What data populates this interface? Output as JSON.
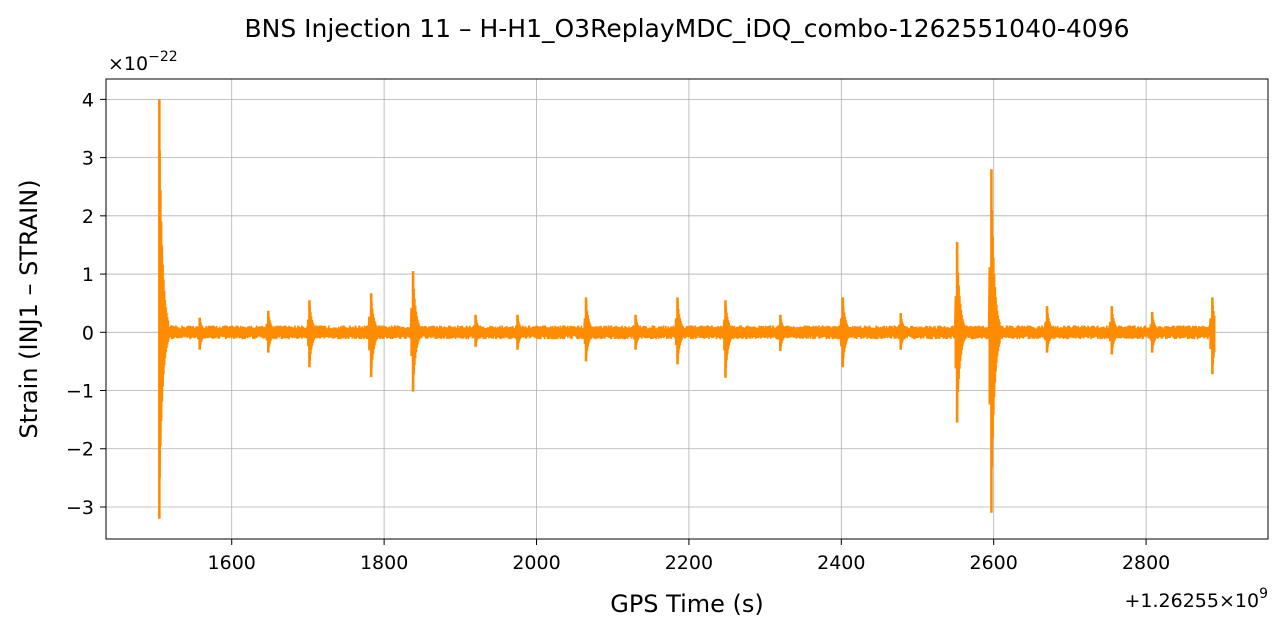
{
  "chart_data": {
    "type": "line",
    "title": "BNS Injection 11 – H-H1_O3ReplayMDC_iDQ_combo-1262551040-4096",
    "xlabel": "GPS Time (s)",
    "ylabel": "Strain (INJ1 – STRAIN)",
    "x_offset_text": "+1.26255×10",
    "x_offset_exp": "9",
    "y_scale_text": "×10",
    "y_scale_exp": "−22",
    "xlim": [
      1435,
      2960
    ],
    "ylim": [
      -3.55,
      4.35
    ],
    "x_ticks": [
      1600,
      1800,
      2000,
      2200,
      2400,
      2600,
      2800
    ],
    "x_tick_labels": [
      "1600",
      "1800",
      "2000",
      "2200",
      "2400",
      "2600",
      "2800"
    ],
    "y_ticks": [
      -3,
      -2,
      -1,
      0,
      1,
      2,
      3,
      4
    ],
    "y_tick_labels": [
      "−3",
      "−2",
      "−1",
      "0",
      "1",
      "2",
      "3",
      "4"
    ],
    "grid": true,
    "series": [
      {
        "color": "#ff8c00",
        "x_start": 1505,
        "x_end": 2890,
        "base_band": 0.1,
        "spikes": [
          {
            "x": 1505,
            "top": 4.0,
            "bottom": -3.2
          },
          {
            "x": 1558,
            "top": 0.25,
            "bottom": -0.3
          },
          {
            "x": 1648,
            "top": 0.37,
            "bottom": -0.35
          },
          {
            "x": 1702,
            "top": 0.55,
            "bottom": -0.6
          },
          {
            "x": 1783,
            "top": 0.67,
            "bottom": -0.77
          },
          {
            "x": 1838,
            "top": 1.05,
            "bottom": -1.02
          },
          {
            "x": 1920,
            "top": 0.3,
            "bottom": -0.25
          },
          {
            "x": 1975,
            "top": 0.3,
            "bottom": -0.3
          },
          {
            "x": 2065,
            "top": 0.6,
            "bottom": -0.5
          },
          {
            "x": 2130,
            "top": 0.3,
            "bottom": -0.3
          },
          {
            "x": 2185,
            "top": 0.6,
            "bottom": -0.55
          },
          {
            "x": 2248,
            "top": 0.55,
            "bottom": -0.78
          },
          {
            "x": 2320,
            "top": 0.3,
            "bottom": -0.32
          },
          {
            "x": 2402,
            "top": 0.6,
            "bottom": -0.6
          },
          {
            "x": 2478,
            "top": 0.33,
            "bottom": -0.3
          },
          {
            "x": 2552,
            "top": 1.55,
            "bottom": -1.55
          },
          {
            "x": 2597,
            "top": 2.8,
            "bottom": -3.1
          },
          {
            "x": 2670,
            "top": 0.45,
            "bottom": -0.35
          },
          {
            "x": 2755,
            "top": 0.45,
            "bottom": -0.38
          },
          {
            "x": 2808,
            "top": 0.35,
            "bottom": -0.35
          },
          {
            "x": 2887,
            "top": 0.6,
            "bottom": -0.72
          }
        ]
      }
    ]
  }
}
